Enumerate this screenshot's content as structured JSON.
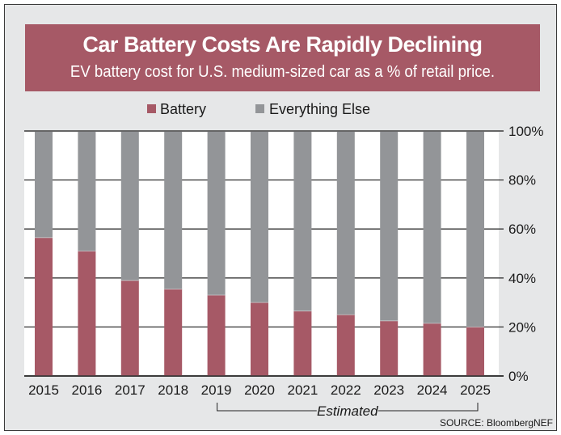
{
  "chart_data": {
    "type": "bar",
    "stacked": true,
    "normalized": true,
    "title": "Car Battery Costs Are Rapidly Declining",
    "subtitle": "EV battery cost for U.S. medium-sized car as a % of retail price.",
    "categories": [
      "2015",
      "2016",
      "2017",
      "2018",
      "2019",
      "2020",
      "2021",
      "2022",
      "2023",
      "2024",
      "2025"
    ],
    "series": [
      {
        "name": "Battery",
        "color": "#A65966",
        "values": [
          56.5,
          51,
          39,
          35.5,
          33,
          30,
          26.5,
          25,
          22.5,
          21.5,
          20
        ]
      },
      {
        "name": "Everything Else",
        "color": "#939598",
        "values": [
          43.5,
          49,
          61,
          64.5,
          67,
          70,
          73.5,
          75,
          77.5,
          78.5,
          80
        ]
      }
    ],
    "xlabel": "",
    "ylabel": "",
    "ylim": [
      0,
      100
    ],
    "yticks": [
      "0%",
      "20%",
      "40%",
      "60%",
      "80%",
      "100%"
    ],
    "ytick_values": [
      0,
      20,
      40,
      60,
      80,
      100
    ],
    "y_axis_side": "right",
    "grid": true,
    "legend": {
      "placement": "top-center",
      "entries": [
        "Battery",
        "Everything Else"
      ]
    },
    "annotations": [
      {
        "text": "Estimated",
        "range": [
          "2019",
          "2025"
        ],
        "type": "bracket"
      }
    ],
    "source": "SOURCE: BloombergNEF"
  },
  "colors": {
    "background": "#E6E7E8",
    "plot_background": "#FFFFFF",
    "title_band": "#A65966",
    "battery": "#A65966",
    "everything_else": "#939598",
    "gridline": "#333333"
  }
}
